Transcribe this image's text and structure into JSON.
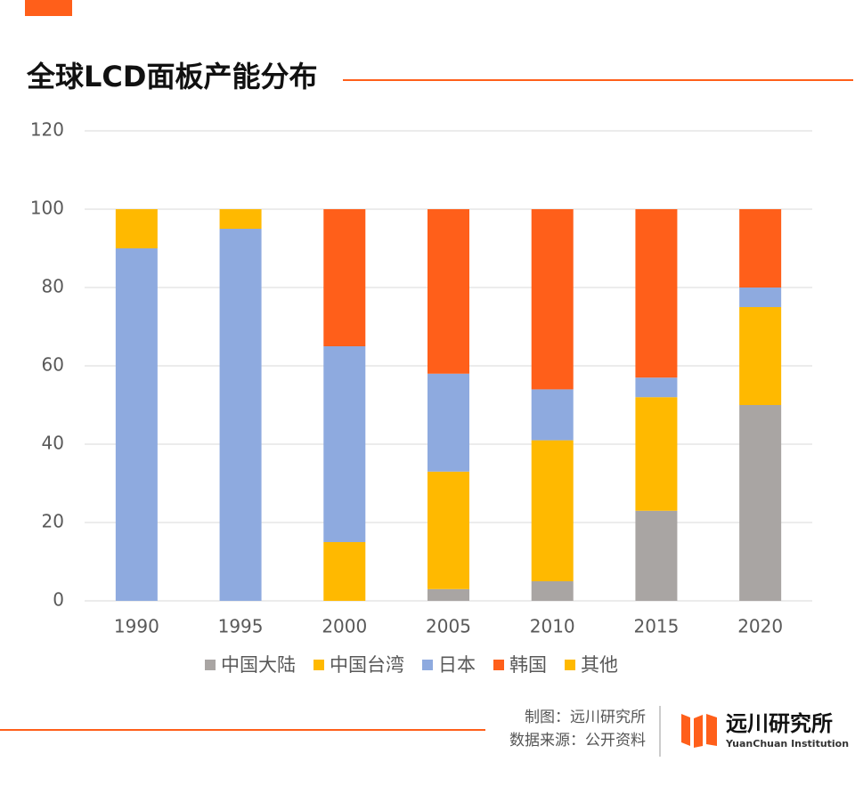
{
  "chart_data": {
    "type": "stacked_bar",
    "title": "全球LCD面板产能分布",
    "categories": [
      "1990",
      "1995",
      "2000",
      "2005",
      "2010",
      "2015",
      "2020"
    ],
    "series": [
      {
        "name": "中国大陆",
        "color": "#a9a5a3",
        "values": [
          0,
          0,
          0,
          3,
          5,
          23,
          50
        ]
      },
      {
        "name": "中国台湾",
        "color": "#ffb900",
        "values": [
          0,
          0,
          15,
          30,
          36,
          29,
          25
        ]
      },
      {
        "name": "日本",
        "color": "#8eaadf",
        "values": [
          90,
          95,
          50,
          25,
          13,
          5,
          5
        ]
      },
      {
        "name": "韩国",
        "color": "#ff5f1a",
        "values": [
          0,
          0,
          35,
          42,
          46,
          43,
          20
        ]
      },
      {
        "name": "其他",
        "color": "#ffb900",
        "values": [
          10,
          5,
          0,
          0,
          0,
          0,
          0
        ]
      }
    ],
    "ylim": [
      0,
      120
    ],
    "yticks": [
      0,
      20,
      40,
      60,
      80,
      100,
      120
    ],
    "grid": true,
    "legend": "bottom"
  },
  "credit": "制图：远川研究所",
  "source": "数据来源：公开资料",
  "logo_name": "远川研究所",
  "logo_subtitle": "YuanChuan Institution"
}
